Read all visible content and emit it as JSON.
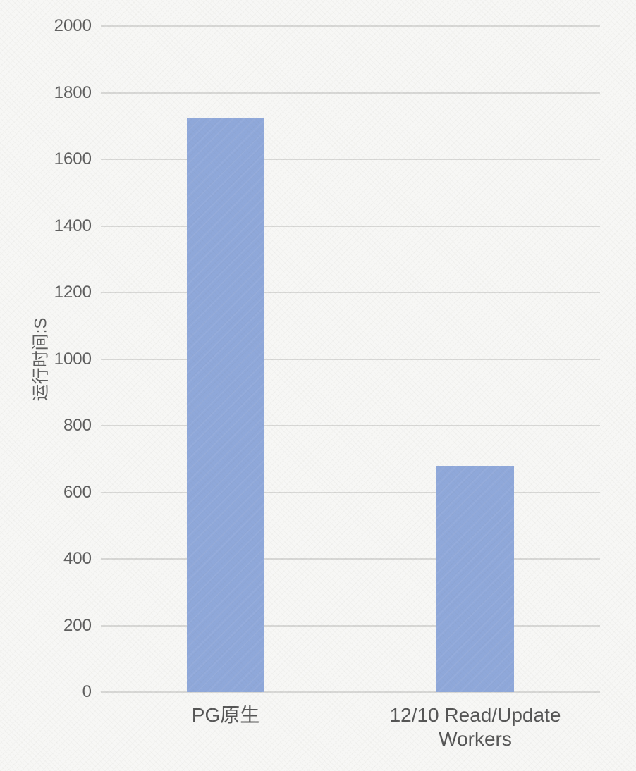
{
  "chart_data": {
    "type": "bar",
    "categories": [
      "PG原生",
      "12/10 Read/Update Workers"
    ],
    "values": [
      1725,
      680
    ],
    "title": "",
    "xlabel": "",
    "ylabel": "运行时间:S",
    "ylim": [
      0,
      2000
    ],
    "yticks": [
      0,
      200,
      400,
      600,
      800,
      1000,
      1200,
      1400,
      1600,
      1800,
      2000
    ],
    "grid": "horizontal-only",
    "legend": "none",
    "bar_color": "#8fa8da",
    "gridline_color": "#d7d7d5",
    "text_color": "#5d5d5d",
    "background_color": "#f7f7f5"
  }
}
